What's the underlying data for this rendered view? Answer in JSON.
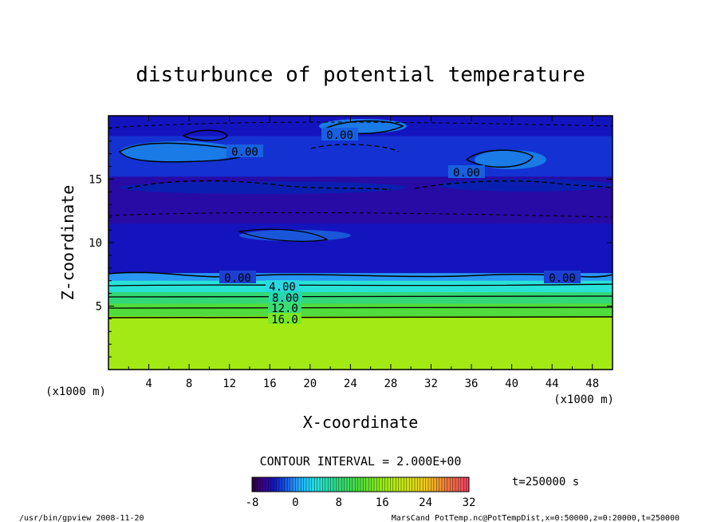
{
  "chart_data": {
    "type": "heatmap",
    "title": "disturbunce of potential temperature",
    "xlabel": "X-coordinate",
    "ylabel": "Z-coordinate",
    "x_unit": "(x1000 m)",
    "x_unit_right": "(x1000 m)",
    "xlim": [
      0,
      50
    ],
    "ylim": [
      0,
      20
    ],
    "x_ticks": [
      "4",
      "8",
      "12",
      "16",
      "20",
      "24",
      "28",
      "32",
      "36",
      "40",
      "44",
      "48"
    ],
    "y_ticks": [
      "5",
      "10",
      "15"
    ],
    "contour_labels": [
      "0.00",
      "0.00",
      "0.00",
      "0.00",
      "0.00",
      "4.00",
      "8.00",
      "12.0",
      "16.0"
    ],
    "contour_interval_text": "CONTOUR INTERVAL = 2.000E+00",
    "time_text": "t=250000 s",
    "colorbar": {
      "ticks": [
        "-8",
        "0",
        "8",
        "16",
        "24",
        "32"
      ],
      "min": -8,
      "max": 32
    },
    "layers": [
      {
        "z_top": 20.0,
        "z_bottom": 18.4,
        "value": -4
      },
      {
        "z_top": 18.4,
        "z_bottom": 15.2,
        "value": -3
      },
      {
        "z_top": 15.2,
        "z_bottom": 11.5,
        "value": -5
      },
      {
        "z_top": 11.5,
        "z_bottom": 7.6,
        "value": -4
      },
      {
        "z_top": 7.6,
        "z_bottom": 7.0,
        "value": 0
      },
      {
        "z_top": 7.0,
        "z_bottom": 6.1,
        "value": 4
      },
      {
        "z_top": 6.1,
        "z_bottom": 5.2,
        "value": 8
      },
      {
        "z_top": 5.2,
        "z_bottom": 4.2,
        "value": 12
      },
      {
        "z_top": 4.2,
        "z_bottom": 0.0,
        "value": 17
      }
    ],
    "grid": false,
    "legend": "bottom colorbar"
  },
  "footer": {
    "left": "/usr/bin/gpview   2008-11-20",
    "right": "MarsCand_PotTemp.nc@PotTempDist,x=0:50000,z=0:20000,t=250000"
  }
}
